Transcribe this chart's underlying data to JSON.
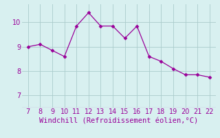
{
  "x": [
    7,
    8,
    9,
    10,
    11,
    12,
    13,
    14,
    15,
    16,
    17,
    18,
    19,
    20,
    21,
    22
  ],
  "y": [
    9.0,
    9.1,
    8.85,
    8.6,
    9.85,
    10.4,
    9.85,
    9.85,
    9.35,
    9.85,
    8.6,
    8.4,
    8.1,
    7.85,
    7.85,
    7.75
  ],
  "line_color": "#990099",
  "marker": "D",
  "marker_size": 2.5,
  "bg_color": "#d8f0f0",
  "grid_color": "#aacccc",
  "xlabel": "Windchill (Refroidissement éolien,°C)",
  "xlabel_color": "#990099",
  "xlabel_fontsize": 7.5,
  "tick_color": "#990099",
  "tick_fontsize": 7,
  "xlim": [
    6.5,
    22.5
  ],
  "ylim": [
    6.5,
    10.75
  ],
  "yticks": [
    7,
    8,
    9,
    10
  ],
  "xticks": [
    7,
    8,
    9,
    10,
    11,
    12,
    13,
    14,
    15,
    16,
    17,
    18,
    19,
    20,
    21,
    22
  ]
}
